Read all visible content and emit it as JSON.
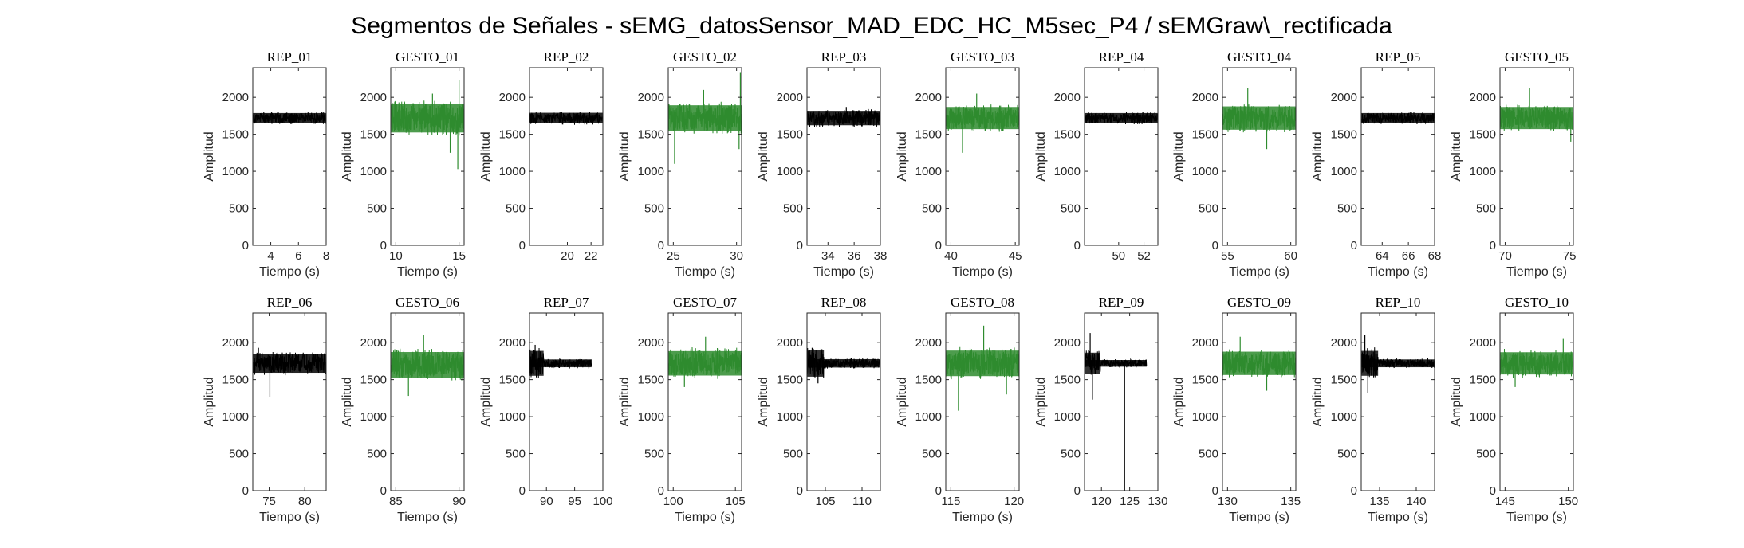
{
  "figure_title": "Segmentos de Señales - sEMG_datosSensor_MAD_EDC_HC_M5sec_P4 / sEMGraw\\_rectificada",
  "colors": {
    "rep": "#000000",
    "gesto": "#2e8b2e",
    "axis": "#262626"
  },
  "chart_data": [
    {
      "type": "line",
      "title": "REP_01",
      "xlabel": "Tiempo (s)",
      "ylabel": "Amplitud",
      "xlim": [
        2.7,
        8
      ],
      "ylim": [
        0,
        2400
      ],
      "xticks": [
        4,
        6,
        8
      ],
      "yticks": [
        0,
        500,
        1000,
        1500,
        2000
      ],
      "series": [
        {
          "x_range": [
            2.7,
            8
          ],
          "values": [
            {
              "x": 2.7,
              "y": 1720
            },
            {
              "x": 8,
              "y": 1720
            }
          ],
          "center": 1720,
          "band": 90,
          "spikes": []
        }
      ],
      "kind": "rep"
    },
    {
      "type": "line",
      "title": "GESTO_01",
      "xlabel": "Tiempo (s)",
      "ylabel": "Amplitud",
      "xlim": [
        9.6,
        15.4
      ],
      "ylim": [
        0,
        2400
      ],
      "xticks": [
        10,
        15
      ],
      "yticks": [
        0,
        500,
        1000,
        1500,
        2000
      ],
      "series": [
        {
          "x_range": [
            9.6,
            15.4
          ],
          "values": [
            {
              "x": 9.6,
              "y": 1720
            },
            {
              "x": 15.4,
              "y": 1720
            }
          ],
          "center": 1720,
          "band": 260,
          "spikes": [
            {
              "x": 14.9,
              "y": 1030
            },
            {
              "x": 15.0,
              "y": 2230
            },
            {
              "x": 14.3,
              "y": 1250
            },
            {
              "x": 12.9,
              "y": 2050
            }
          ]
        }
      ],
      "kind": "gesto"
    },
    {
      "type": "line",
      "title": "REP_02",
      "xlabel": "",
      "ylabel": "Amplitud",
      "xlim": [
        16.8,
        23
      ],
      "ylim": [
        0,
        2400
      ],
      "xticks": [
        20,
        22
      ],
      "yticks": [
        0,
        500,
        1000,
        1500,
        2000
      ],
      "series": [
        {
          "x_range": [
            16.8,
            23
          ],
          "values": [
            {
              "x": 16.8,
              "y": 1720
            },
            {
              "x": 23,
              "y": 1720
            }
          ],
          "center": 1720,
          "band": 95,
          "spikes": []
        }
      ],
      "kind": "rep"
    },
    {
      "type": "line",
      "title": "GESTO_02",
      "xlabel": "Tiempo (s)",
      "ylabel": "Amplitud",
      "xlim": [
        24.6,
        30.4
      ],
      "ylim": [
        0,
        2400
      ],
      "xticks": [
        25,
        30
      ],
      "yticks": [
        0,
        500,
        1000,
        1500,
        2000
      ],
      "series": [
        {
          "x_range": [
            24.6,
            30.4
          ],
          "values": [
            {
              "x": 24.6,
              "y": 1720
            },
            {
              "x": 30.4,
              "y": 1720
            }
          ],
          "center": 1720,
          "band": 230,
          "spikes": [
            {
              "x": 25.1,
              "y": 1100
            },
            {
              "x": 30.3,
              "y": 2330
            },
            {
              "x": 30.2,
              "y": 1300
            },
            {
              "x": 27.4,
              "y": 2100
            }
          ]
        }
      ],
      "kind": "gesto"
    },
    {
      "type": "line",
      "title": "REP_03",
      "xlabel": "Tiempo (s)",
      "ylabel": "Amplitud",
      "xlim": [
        32.4,
        38
      ],
      "ylim": [
        0,
        2400
      ],
      "xticks": [
        34,
        36,
        38
      ],
      "yticks": [
        0,
        500,
        1000,
        1500,
        2000
      ],
      "series": [
        {
          "x_range": [
            32.4,
            38
          ],
          "values": [
            {
              "x": 32.4,
              "y": 1720
            },
            {
              "x": 38,
              "y": 1720
            }
          ],
          "center": 1720,
          "band": 130,
          "spikes": [
            {
              "x": 35.4,
              "y": 1870
            }
          ]
        }
      ],
      "kind": "rep"
    },
    {
      "type": "line",
      "title": "GESTO_03",
      "xlabel": "Tiempo (s)",
      "ylabel": "Amplitud",
      "xlim": [
        39.6,
        45.3
      ],
      "ylim": [
        0,
        2400
      ],
      "xticks": [
        40,
        45
      ],
      "yticks": [
        0,
        500,
        1000,
        1500,
        2000
      ],
      "series": [
        {
          "x_range": [
            39.6,
            45.3
          ],
          "values": [
            {
              "x": 39.6,
              "y": 1720
            },
            {
              "x": 45.3,
              "y": 1720
            }
          ],
          "center": 1720,
          "band": 200,
          "spikes": [
            {
              "x": 40.9,
              "y": 1250
            },
            {
              "x": 42.0,
              "y": 2050
            }
          ]
        }
      ],
      "kind": "gesto"
    },
    {
      "type": "line",
      "title": "REP_04",
      "xlabel": "",
      "ylabel": "Amplitud",
      "xlim": [
        47.3,
        53.1
      ],
      "ylim": [
        0,
        2400
      ],
      "xticks": [
        50,
        52
      ],
      "yticks": [
        0,
        500,
        1000,
        1500,
        2000
      ],
      "series": [
        {
          "x_range": [
            47.3,
            53.1
          ],
          "values": [
            {
              "x": 47.3,
              "y": 1720
            },
            {
              "x": 53.1,
              "y": 1720
            }
          ],
          "center": 1720,
          "band": 90,
          "spikes": []
        }
      ],
      "kind": "rep"
    },
    {
      "type": "line",
      "title": "GESTO_04",
      "xlabel": "Tiempo (s)",
      "ylabel": "Amplitud",
      "xlim": [
        54.6,
        60.4
      ],
      "ylim": [
        0,
        2400
      ],
      "xticks": [
        55,
        60
      ],
      "yticks": [
        0,
        500,
        1000,
        1500,
        2000
      ],
      "series": [
        {
          "x_range": [
            54.6,
            60.4
          ],
          "values": [
            {
              "x": 54.6,
              "y": 1720
            },
            {
              "x": 60.4,
              "y": 1720
            }
          ],
          "center": 1720,
          "band": 210,
          "spikes": [
            {
              "x": 56.6,
              "y": 2130
            },
            {
              "x": 58.1,
              "y": 1300
            }
          ]
        }
      ],
      "kind": "gesto"
    },
    {
      "type": "line",
      "title": "REP_05",
      "xlabel": "Tiempo (s)",
      "ylabel": "Amplitud",
      "xlim": [
        62.4,
        68
      ],
      "ylim": [
        0,
        2400
      ],
      "xticks": [
        64,
        66,
        68
      ],
      "yticks": [
        0,
        500,
        1000,
        1500,
        2000
      ],
      "series": [
        {
          "x_range": [
            62.4,
            68
          ],
          "values": [
            {
              "x": 62.4,
              "y": 1720
            },
            {
              "x": 68,
              "y": 1720
            }
          ],
          "center": 1720,
          "band": 90,
          "spikes": []
        }
      ],
      "kind": "rep"
    },
    {
      "type": "line",
      "title": "GESTO_05",
      "xlabel": "Tiempo (s)",
      "ylabel": "Amplitud",
      "xlim": [
        69.6,
        75.3
      ],
      "ylim": [
        0,
        2400
      ],
      "xticks": [
        70,
        75
      ],
      "yticks": [
        0,
        500,
        1000,
        1500,
        2000
      ],
      "series": [
        {
          "x_range": [
            69.6,
            75.3
          ],
          "values": [
            {
              "x": 69.6,
              "y": 1720
            },
            {
              "x": 75.3,
              "y": 1720
            }
          ],
          "center": 1720,
          "band": 200,
          "spikes": [
            {
              "x": 71.9,
              "y": 2120
            },
            {
              "x": 75.1,
              "y": 1400
            }
          ]
        }
      ],
      "kind": "gesto"
    },
    {
      "type": "line",
      "title": "REP_06",
      "xlabel": "Tiempo (s)",
      "ylabel": "Amplitud",
      "xlim": [
        72.7,
        83
      ],
      "ylim": [
        0,
        2400
      ],
      "xticks": [
        75,
        80
      ],
      "yticks": [
        0,
        500,
        1000,
        1500,
        2000
      ],
      "series": [
        {
          "x_range": [
            72.7,
            83
          ],
          "values": [
            {
              "x": 72.7,
              "y": 1720
            },
            {
              "x": 83,
              "y": 1720
            }
          ],
          "center": 1720,
          "band": 170,
          "spikes": [
            {
              "x": 75.1,
              "y": 1270
            },
            {
              "x": 73.5,
              "y": 1930
            }
          ]
        }
      ],
      "kind": "rep"
    },
    {
      "type": "line",
      "title": "GESTO_06",
      "xlabel": "Tiempo (s)",
      "ylabel": "Amplitud",
      "xlim": [
        84.6,
        90.4
      ],
      "ylim": [
        0,
        2400
      ],
      "xticks": [
        85,
        90
      ],
      "yticks": [
        0,
        500,
        1000,
        1500,
        2000
      ],
      "series": [
        {
          "x_range": [
            84.6,
            90.4
          ],
          "values": [
            {
              "x": 84.6,
              "y": 1700
            },
            {
              "x": 90.4,
              "y": 1700
            }
          ],
          "center": 1700,
          "band": 230,
          "spikes": [
            {
              "x": 86.0,
              "y": 1280
            },
            {
              "x": 87.2,
              "y": 2100
            }
          ]
        }
      ],
      "kind": "gesto"
    },
    {
      "type": "line",
      "title": "REP_07",
      "xlabel": "",
      "ylabel": "Amplitud",
      "xlim": [
        87,
        100
      ],
      "ylim": [
        0,
        2400
      ],
      "xticks": [
        90,
        95,
        100
      ],
      "yticks": [
        0,
        500,
        1000,
        1500,
        2000
      ],
      "series": [
        {
          "x_range": [
            87,
            98
          ],
          "values": [
            {
              "x": 87,
              "y": 1720
            },
            {
              "x": 98,
              "y": 1720
            }
          ],
          "center": 1720,
          "band": 70,
          "spikes": [
            {
              "x": 88.0,
              "y": 1970
            },
            {
              "x": 88.2,
              "y": 1560
            }
          ],
          "burst_until": 89.5
        }
      ],
      "kind": "rep"
    },
    {
      "type": "line",
      "title": "GESTO_07",
      "xlabel": "Tiempo (s)",
      "ylabel": "Amplitud",
      "xlim": [
        99.6,
        105.5
      ],
      "ylim": [
        0,
        2400
      ],
      "xticks": [
        100,
        105
      ],
      "yticks": [
        0,
        500,
        1000,
        1500,
        2000
      ],
      "series": [
        {
          "x_range": [
            99.6,
            105.5
          ],
          "values": [
            {
              "x": 99.6,
              "y": 1720
            },
            {
              "x": 105.5,
              "y": 1720
            }
          ],
          "center": 1720,
          "band": 220,
          "spikes": [
            {
              "x": 102.6,
              "y": 2080
            },
            {
              "x": 100.9,
              "y": 1400
            }
          ]
        }
      ],
      "kind": "gesto"
    },
    {
      "type": "line",
      "title": "REP_08",
      "xlabel": "",
      "ylabel": "Amplitud",
      "xlim": [
        102.5,
        112.5
      ],
      "ylim": [
        0,
        2400
      ],
      "xticks": [
        105,
        110
      ],
      "yticks": [
        0,
        500,
        1000,
        1500,
        2000
      ],
      "series": [
        {
          "x_range": [
            102.5,
            112.5
          ],
          "values": [
            {
              "x": 102.5,
              "y": 1720
            },
            {
              "x": 112.5,
              "y": 1720
            }
          ],
          "center": 1720,
          "band": 75,
          "spikes": [
            {
              "x": 103.2,
              "y": 1930
            },
            {
              "x": 104.0,
              "y": 1450
            }
          ],
          "burst_until": 104.8
        }
      ],
      "kind": "rep"
    },
    {
      "type": "line",
      "title": "GESTO_08",
      "xlabel": "Tiempo (s)",
      "ylabel": "Amplitud",
      "xlim": [
        114.6,
        120.4
      ],
      "ylim": [
        0,
        2400
      ],
      "xticks": [
        115,
        120
      ],
      "yticks": [
        0,
        500,
        1000,
        1500,
        2000
      ],
      "series": [
        {
          "x_range": [
            114.6,
            120.4
          ],
          "values": [
            {
              "x": 114.6,
              "y": 1720
            },
            {
              "x": 120.4,
              "y": 1720
            }
          ],
          "center": 1720,
          "band": 230,
          "spikes": [
            {
              "x": 115.6,
              "y": 1080
            },
            {
              "x": 117.6,
              "y": 2230
            },
            {
              "x": 119.4,
              "y": 1300
            }
          ]
        }
      ],
      "kind": "gesto"
    },
    {
      "type": "line",
      "title": "REP_09",
      "xlabel": "",
      "ylabel": "Amplitud",
      "xlim": [
        117,
        130
      ],
      "ylim": [
        0,
        2400
      ],
      "xticks": [
        120,
        125,
        130
      ],
      "yticks": [
        0,
        500,
        1000,
        1500,
        2000
      ],
      "series": [
        {
          "x_range": [
            117,
            128
          ],
          "values": [
            {
              "x": 117,
              "y": 1720
            },
            {
              "x": 128,
              "y": 1720
            }
          ],
          "center": 1720,
          "band": 60,
          "spikes": [
            {
              "x": 118.0,
              "y": 2130
            },
            {
              "x": 118.4,
              "y": 1230
            },
            {
              "x": 124.1,
              "y": 0
            }
          ],
          "burst_until": 119.8
        }
      ],
      "kind": "rep"
    },
    {
      "type": "line",
      "title": "GESTO_09",
      "xlabel": "Tiempo (s)",
      "ylabel": "Amplitud",
      "xlim": [
        129.6,
        135.4
      ],
      "ylim": [
        0,
        2400
      ],
      "xticks": [
        130,
        135
      ],
      "yticks": [
        0,
        500,
        1000,
        1500,
        2000
      ],
      "series": [
        {
          "x_range": [
            129.6,
            135.4
          ],
          "values": [
            {
              "x": 129.6,
              "y": 1720
            },
            {
              "x": 135.4,
              "y": 1720
            }
          ],
          "center": 1720,
          "band": 210,
          "spikes": [
            {
              "x": 131.0,
              "y": 2080
            },
            {
              "x": 133.1,
              "y": 1350
            }
          ]
        }
      ],
      "kind": "gesto"
    },
    {
      "type": "line",
      "title": "REP_10",
      "xlabel": "Tiempo (s)",
      "ylabel": "Amplitud",
      "xlim": [
        132.5,
        142.5
      ],
      "ylim": [
        0,
        2400
      ],
      "xticks": [
        135,
        140
      ],
      "yticks": [
        0,
        500,
        1000,
        1500,
        2000
      ],
      "series": [
        {
          "x_range": [
            132.5,
            142.5
          ],
          "values": [
            {
              "x": 132.5,
              "y": 1720
            },
            {
              "x": 142.5,
              "y": 1720
            }
          ],
          "center": 1720,
          "band": 70,
          "spikes": [
            {
              "x": 133.0,
              "y": 2100
            },
            {
              "x": 133.4,
              "y": 1320
            }
          ],
          "burst_until": 134.8
        }
      ],
      "kind": "rep"
    },
    {
      "type": "line",
      "title": "GESTO_10",
      "xlabel": "Tiempo (s)",
      "ylabel": "Amplitud",
      "xlim": [
        144.6,
        150.4
      ],
      "ylim": [
        0,
        2400
      ],
      "xticks": [
        145,
        150
      ],
      "yticks": [
        0,
        500,
        1000,
        1500,
        2000
      ],
      "series": [
        {
          "x_range": [
            144.6,
            150.4
          ],
          "values": [
            {
              "x": 144.6,
              "y": 1720
            },
            {
              "x": 150.4,
              "y": 1720
            }
          ],
          "center": 1720,
          "band": 200,
          "spikes": [
            {
              "x": 149.6,
              "y": 2060
            },
            {
              "x": 145.8,
              "y": 1400
            }
          ]
        }
      ],
      "kind": "gesto"
    }
  ]
}
